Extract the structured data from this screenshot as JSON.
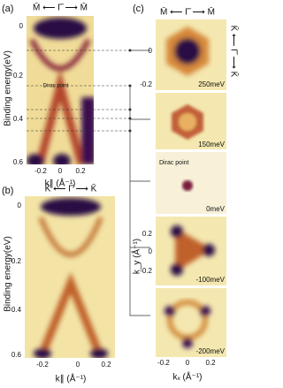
{
  "panel_a": {
    "label": "(a)",
    "top_axis": "M̄ ⟵ Γ̄ ⟶ M̄",
    "y_axis_label": "Binding energy(eV)",
    "y_ticks": [
      "0",
      "0.2",
      "0.4",
      "0.6"
    ],
    "x_ticks": [
      "-0.2",
      "0",
      "0.2"
    ],
    "x_axis_label": "k∥ (Å⁻¹)",
    "annotation": "Dirac point"
  },
  "panel_b": {
    "label": "(b)",
    "top_axis": "K̄ ⟵ Γ̄ ⟶ K̄",
    "y_axis_label": "Binding energy(eV)",
    "y_ticks": [
      "0",
      "0.2",
      "0.4",
      "0.6"
    ],
    "x_ticks": [
      "-0.2",
      "0",
      "0.2"
    ],
    "x_axis_label": "k∥ (Å⁻¹)"
  },
  "panel_c": {
    "label": "(c)",
    "top_axis": "M̄ ⟵ Γ̄ ⟶ M̄",
    "side_axis": "K̄ ⟵ Γ̄ ⟶ K̄",
    "maps": [
      "250meV",
      "150meV",
      "0meV",
      "-100meV",
      "-200meV"
    ],
    "dirac_label": "Dirac point",
    "top_ticks": [
      "0",
      "-0.2"
    ],
    "bottom_ticks": [
      "0.2",
      "0",
      "-0.2"
    ],
    "x_ticks": [
      "-0.2",
      "0",
      "0.2"
    ],
    "x_axis_label": "kₓ (Å⁻¹)",
    "y_axis_label": "k_y (Å⁻¹)"
  }
}
